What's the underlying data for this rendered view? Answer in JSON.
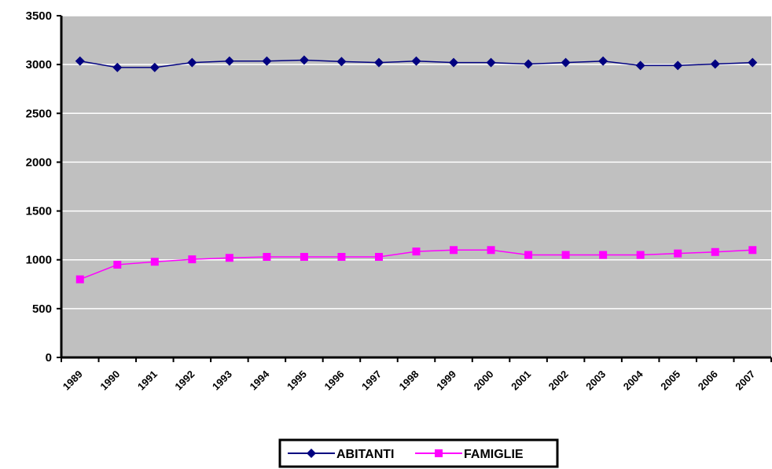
{
  "chart_data": {
    "type": "line",
    "categories": [
      "1989",
      "1990",
      "1991",
      "1992",
      "1993",
      "1994",
      "1995",
      "1996",
      "1997",
      "1998",
      "1999",
      "2000",
      "2001",
      "2002",
      "2003",
      "2004",
      "2005",
      "2006",
      "2007"
    ],
    "series": [
      {
        "name": "ABITANTI",
        "color": "#000080",
        "marker": "diamond",
        "values": [
          3035,
          2970,
          2970,
          3020,
          3035,
          3035,
          3045,
          3030,
          3020,
          3035,
          3020,
          3020,
          3005,
          3020,
          3035,
          2990,
          2990,
          3005,
          3020
        ]
      },
      {
        "name": "FAMIGLIE",
        "color": "#ff00ff",
        "marker": "square",
        "values": [
          800,
          950,
          980,
          1005,
          1020,
          1030,
          1030,
          1030,
          1030,
          1085,
          1100,
          1100,
          1050,
          1050,
          1050,
          1050,
          1065,
          1080,
          1100
        ]
      }
    ],
    "ylim": [
      0,
      3500
    ],
    "yticks": [
      0,
      500,
      1000,
      1500,
      2000,
      2500,
      3000,
      3500
    ],
    "grid": true,
    "plot_background": "#c0c0c0",
    "legend_position": "bottom"
  }
}
